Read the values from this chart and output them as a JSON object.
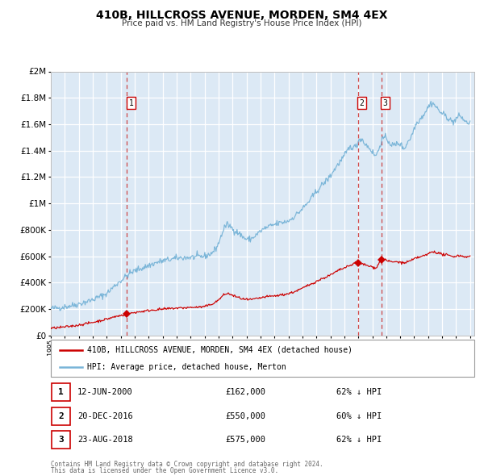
{
  "title": "410B, HILLCROSS AVENUE, MORDEN, SM4 4EX",
  "subtitle": "Price paid vs. HM Land Registry's House Price Index (HPI)",
  "legend_entry1": "410B, HILLCROSS AVENUE, MORDEN, SM4 4EX (detached house)",
  "legend_entry2": "HPI: Average price, detached house, Merton",
  "hpi_color": "#7ab5d8",
  "price_color": "#cc0000",
  "marker_color": "#cc0000",
  "vline_color": "#cc3333",
  "bg_color": "#dce9f5",
  "grid_color": "#ffffff",
  "sale_years": [
    2000.45,
    2016.97,
    2018.64
  ],
  "sale_prices": [
    162000,
    550000,
    575000
  ],
  "sale_labels": [
    "1",
    "2",
    "3"
  ],
  "ylim": [
    0,
    2000000
  ],
  "yticks": [
    0,
    200000,
    400000,
    600000,
    800000,
    1000000,
    1200000,
    1400000,
    1600000,
    1800000,
    2000000
  ],
  "xlim_start": 1995.0,
  "xlim_end": 2025.3,
  "table_data": [
    [
      "1",
      "12-JUN-2000",
      "£162,000",
      "62% ↓ HPI"
    ],
    [
      "2",
      "20-DEC-2016",
      "£550,000",
      "60% ↓ HPI"
    ],
    [
      "3",
      "23-AUG-2018",
      "£575,000",
      "62% ↓ HPI"
    ]
  ],
  "footnote1": "Contains HM Land Registry data © Crown copyright and database right 2024.",
  "footnote2": "This data is licensed under the Open Government Licence v3.0."
}
